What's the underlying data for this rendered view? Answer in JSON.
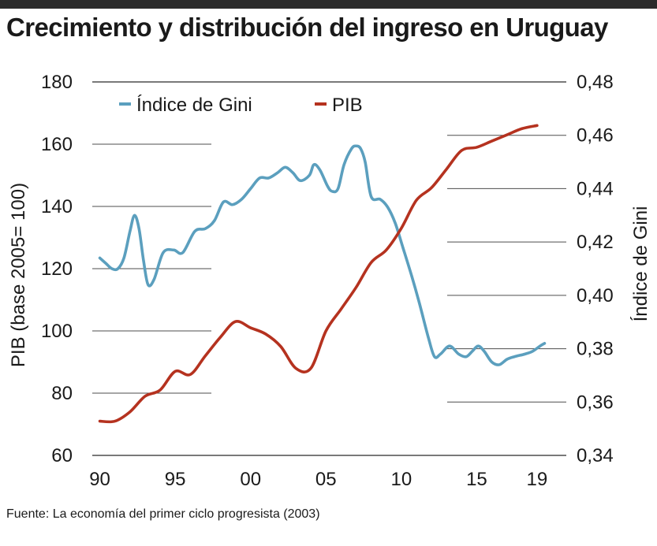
{
  "title": "Crecimiento y distribución del ingreso en Uruguay",
  "source": "Fuente: La economía del primer ciclo progresista (2003)",
  "chart_data": {
    "type": "line",
    "title": "Crecimiento y distribución del ingreso en Uruguay",
    "xlabel": "",
    "x_ticks": [
      "90",
      "95",
      "00",
      "05",
      "10",
      "15",
      "19"
    ],
    "x_tick_years": [
      1990,
      1995,
      2000,
      2005,
      2010,
      2015,
      2019
    ],
    "xlim": [
      1989.5,
      2020
    ],
    "y_left": {
      "label": "PIB (base 2005= 100)",
      "range": [
        60,
        180
      ],
      "ticks": [
        "60",
        "80",
        "100",
        "120",
        "140",
        "160",
        "180"
      ],
      "tick_values": [
        60,
        80,
        100,
        120,
        140,
        160,
        180
      ]
    },
    "y_right": {
      "label": "Índice de Gini",
      "range": [
        0.34,
        0.48
      ],
      "ticks": [
        "0,34",
        "0,36",
        "0,38",
        "0,40",
        "0,42",
        "0,44",
        "0,46",
        "0,48"
      ],
      "tick_values": [
        0.34,
        0.36,
        0.38,
        0.4,
        0.42,
        0.44,
        0.46,
        0.48
      ]
    },
    "grid": true,
    "legend_position": "top-left",
    "series": [
      {
        "name": "Índice de Gini",
        "axis": "right",
        "color": "#5b9fbe",
        "x": [
          1990,
          1990.4,
          1990.8,
          1991.2,
          1991.6,
          1992,
          1992.3,
          1992.6,
          1992.9,
          1993.2,
          1993.6,
          1994.2,
          1994.9,
          1995.5,
          1996.3,
          1997,
          1997.6,
          1998.2,
          1998.8,
          1999.4,
          2000,
          2000.6,
          2001.2,
          2001.8,
          2002.3,
          2002.8,
          2003.3,
          2003.9,
          2004.2,
          2004.6,
          2005.1,
          2005.4,
          2005.8,
          2006.2,
          2006.7,
          2007,
          2007.3,
          2007.6,
          2008,
          2008.6,
          2009.1,
          2009.6,
          2010.1,
          2010.7,
          2011.2,
          2011.8,
          2012.2,
          2012.6,
          2013.2,
          2013.8,
          2014.3,
          2014.7,
          2015.1,
          2015.5,
          2016,
          2016.5,
          2017,
          2017.5,
          2018.2,
          2018.7,
          2019.2,
          2019.5
        ],
        "values": [
          0.414,
          0.412,
          0.41,
          0.41,
          0.414,
          0.424,
          0.43,
          0.425,
          0.413,
          0.404,
          0.406,
          0.416,
          0.417,
          0.416,
          0.424,
          0.425,
          0.428,
          0.435,
          0.434,
          0.436,
          0.44,
          0.444,
          0.444,
          0.446,
          0.448,
          0.446,
          0.443,
          0.445,
          0.449,
          0.447,
          0.441,
          0.439,
          0.44,
          0.449,
          0.455,
          0.456,
          0.455,
          0.45,
          0.437,
          0.436,
          0.433,
          0.427,
          0.418,
          0.407,
          0.397,
          0.384,
          0.377,
          0.378,
          0.381,
          0.378,
          0.377,
          0.379,
          0.381,
          0.379,
          0.375,
          0.374,
          0.376,
          0.377,
          0.378,
          0.379,
          0.381,
          0.382
        ]
      },
      {
        "name": "PIB",
        "axis": "left",
        "color": "#b5321f",
        "x": [
          1990,
          1991,
          1992,
          1993,
          1994,
          1995,
          1996,
          1997,
          1998,
          1999,
          2000,
          2001,
          2002,
          2003,
          2004,
          2005,
          2006,
          2007,
          2008,
          2009,
          2010,
          2011,
          2012,
          2013,
          2014,
          2015,
          2016,
          2017,
          2018,
          2019
        ],
        "values": [
          71,
          71,
          74,
          79,
          81,
          87,
          86,
          92,
          98,
          103,
          101,
          99,
          95,
          88,
          88,
          100,
          107,
          114,
          122,
          126,
          133,
          142,
          146,
          152,
          158,
          159,
          161,
          163,
          165,
          166
        ]
      }
    ]
  }
}
